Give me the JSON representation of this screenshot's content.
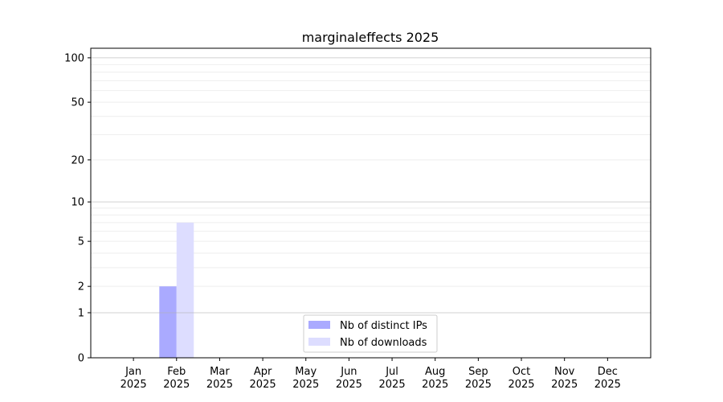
{
  "chart_data": {
    "type": "bar",
    "title": "marginaleffects 2025",
    "xlabel": "",
    "ylabel": "",
    "y_scale": "log10(1+y)",
    "ylim": [
      0,
      116
    ],
    "y_ticks": [
      0,
      1,
      2,
      5,
      10,
      20,
      50,
      100
    ],
    "y_tick_labels": [
      "0",
      "1",
      "2",
      "5",
      "10",
      "20",
      "50",
      "100"
    ],
    "y_major_grid": [
      1,
      10,
      100
    ],
    "y_minor_grid": [
      2,
      3,
      4,
      5,
      6,
      7,
      8,
      9,
      20,
      30,
      40,
      50,
      60,
      70,
      80,
      90
    ],
    "grid": true,
    "categories": [
      "Jan\n2025",
      "Feb\n2025",
      "Mar\n2025",
      "Apr\n2025",
      "May\n2025",
      "Jun\n2025",
      "Jul\n2025",
      "Aug\n2025",
      "Sep\n2025",
      "Oct\n2025",
      "Nov\n2025",
      "Dec\n2025"
    ],
    "x_tick_labels": [
      [
        "Jan",
        "2025"
      ],
      [
        "Feb",
        "2025"
      ],
      [
        "Mar",
        "2025"
      ],
      [
        "Apr",
        "2025"
      ],
      [
        "May",
        "2025"
      ],
      [
        "Jun",
        "2025"
      ],
      [
        "Jul",
        "2025"
      ],
      [
        "Aug",
        "2025"
      ],
      [
        "Sep",
        "2025"
      ],
      [
        "Oct",
        "2025"
      ],
      [
        "Nov",
        "2025"
      ],
      [
        "Dec",
        "2025"
      ]
    ],
    "series": [
      {
        "name": "Nb of distinct IPs",
        "color": "#aaaaff",
        "values": [
          0,
          2,
          0,
          0,
          0,
          0,
          0,
          0,
          0,
          0,
          0,
          0
        ]
      },
      {
        "name": "Nb of downloads",
        "color": "#ddddff",
        "values": [
          0,
          7,
          0,
          0,
          0,
          0,
          0,
          0,
          0,
          0,
          0,
          0
        ]
      }
    ],
    "legend_placement": "lower-center"
  }
}
